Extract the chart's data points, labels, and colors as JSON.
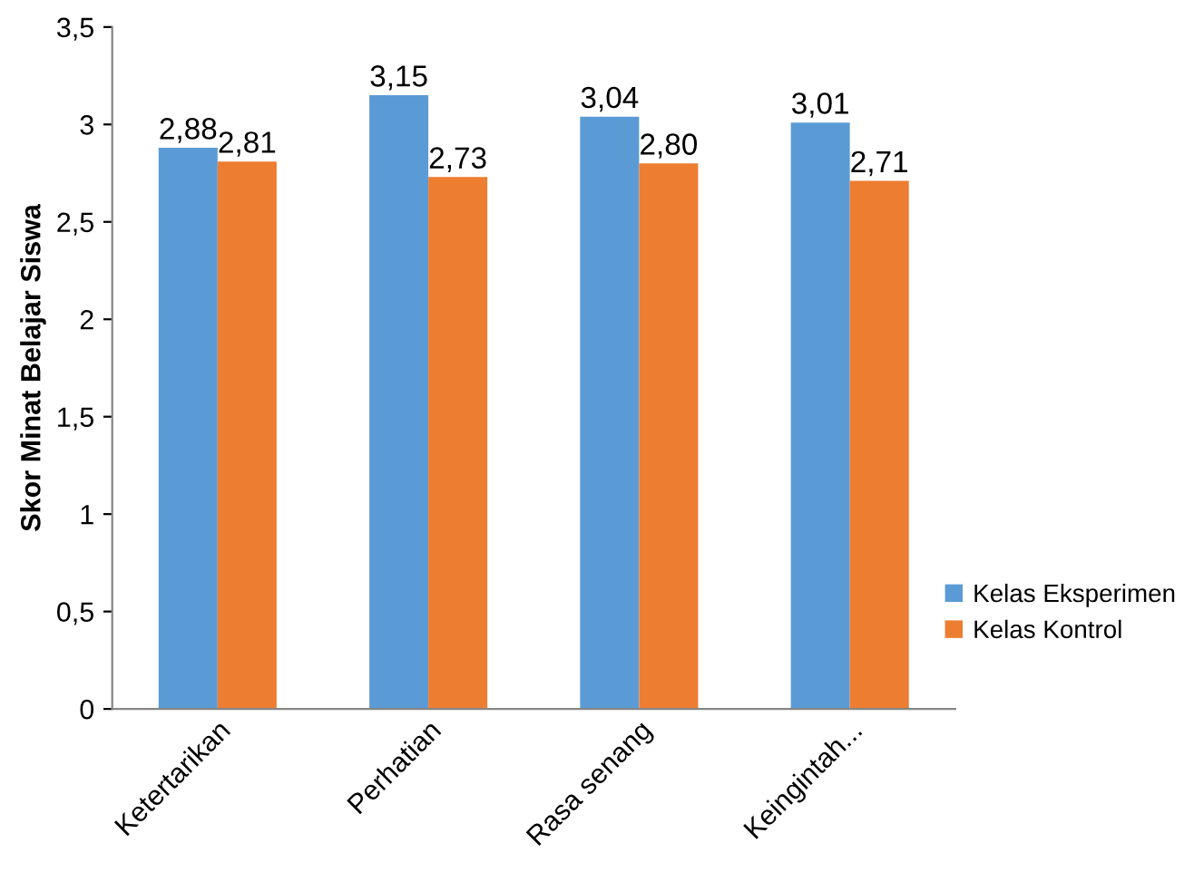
{
  "chart_data": {
    "type": "bar",
    "ylabel": "Skor Minat Belajar Siswa",
    "categories": [
      "Ketertarikan",
      "Perhatian",
      "Rasa senang",
      "Keingintah..."
    ],
    "series": [
      {
        "name": "Kelas Eksperimen",
        "color": "#5b9bd5",
        "values": [
          2.88,
          3.15,
          3.04,
          3.01
        ],
        "value_labels": [
          "2,88",
          "3,15",
          "3,04",
          "3,01"
        ]
      },
      {
        "name": "Kelas Kontrol",
        "color": "#ed7d31",
        "values": [
          2.81,
          2.73,
          2.8,
          2.71
        ],
        "value_labels": [
          "2,81",
          "2,73",
          "2,80",
          "2,71"
        ]
      }
    ],
    "ylim": [
      0,
      3.5
    ],
    "yticks": [
      0,
      {
        "value": 0.5,
        "label": "0,5"
      },
      1,
      {
        "value": 1.5,
        "label": "1,5"
      },
      2,
      {
        "value": 2.5,
        "label": "2,5"
      },
      3,
      {
        "value": 3.5,
        "label": "3,5"
      }
    ],
    "grid": false,
    "legend": "right"
  }
}
